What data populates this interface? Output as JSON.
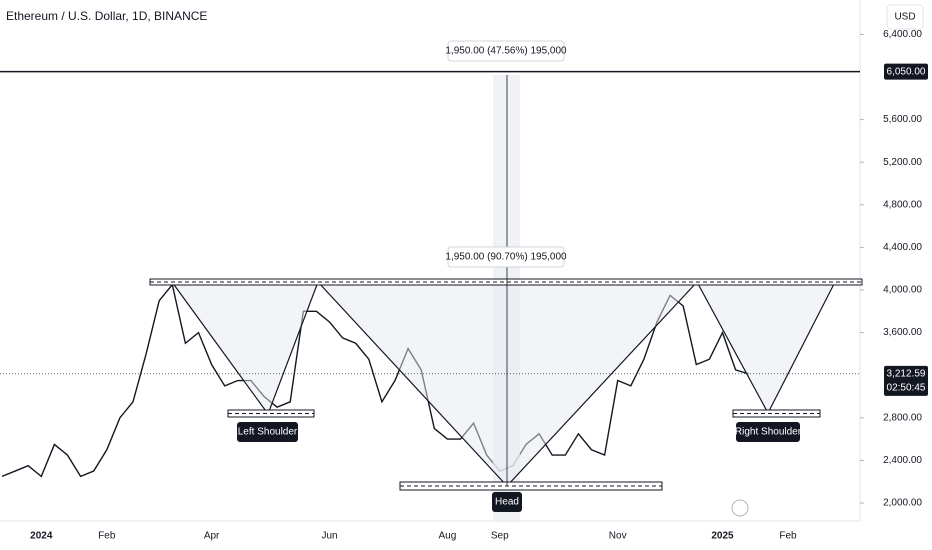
{
  "chart_data": {
    "type": "line",
    "title": "Ethereum / U.S. Dollar, 1D, BINANCE",
    "currency": "USD",
    "categories": [
      null,
      null,
      null,
      "2024",
      null,
      null,
      null,
      null,
      "Feb",
      null,
      null,
      null,
      null,
      null,
      null,
      null,
      "Apr",
      null,
      null,
      null,
      null,
      null,
      null,
      null,
      null,
      "Jun",
      null,
      null,
      null,
      null,
      null,
      null,
      null,
      null,
      "Aug",
      null,
      null,
      null,
      "Sep",
      null,
      null,
      null,
      null,
      null,
      null,
      null,
      null,
      "Nov",
      null,
      null,
      null,
      null,
      null,
      null,
      null,
      "2025",
      null,
      null,
      null,
      null,
      "Feb",
      null,
      null,
      null,
      null
    ],
    "series": [
      {
        "color": "#131722",
        "values": [
          2250,
          2300,
          2350,
          2250,
          2550,
          2450,
          2250,
          2300,
          2500,
          2800,
          2950,
          3400,
          3900,
          4050,
          3500,
          3600,
          3300,
          3100,
          3150,
          3150,
          3000,
          2900,
          2950,
          3800,
          3800,
          3700,
          3550,
          3500,
          3350,
          2950,
          3150,
          3450,
          3250,
          2700,
          2600,
          2600,
          2750,
          2450,
          2300,
          2350,
          2550,
          2650,
          2450,
          2450,
          2650,
          2500,
          2450,
          3150,
          3100,
          3350,
          3700,
          3950,
          3850,
          3300,
          3350,
          3600,
          3250,
          3212.59,
          null,
          null,
          null,
          null,
          null,
          null,
          null
        ]
      }
    ],
    "ylim": [
      1831,
      6723
    ],
    "yticks": [
      {
        "value": 2000,
        "label": "2,000.00"
      },
      {
        "value": 2400,
        "label": "2,400.00"
      },
      {
        "value": 2800,
        "label": "2,800.00"
      },
      {
        "value": 3600,
        "label": "3,600.00"
      },
      {
        "value": 4000,
        "label": "4,000.00"
      },
      {
        "value": 4400,
        "label": "4,400.00"
      },
      {
        "value": 4800,
        "label": "4,800.00"
      },
      {
        "value": 5200,
        "label": "5,200.00"
      },
      {
        "value": 5600,
        "label": "5,600.00"
      },
      {
        "value": 6400,
        "label": "6,400.00"
      }
    ],
    "price_line": {
      "value": 6050,
      "label": "6,050.00"
    },
    "last_price": {
      "value": 3212.59,
      "label": "3,212.59"
    },
    "countdown": "02:50:45",
    "annotations": {
      "measure_top": "1,950.00 (47.56%) 195,000",
      "measure_mid": "1,950.00 (90.70%) 195,000",
      "left_shoulder": "Left Shoulder",
      "head": "Head",
      "right_shoulder": "Right Shoulder"
    }
  }
}
